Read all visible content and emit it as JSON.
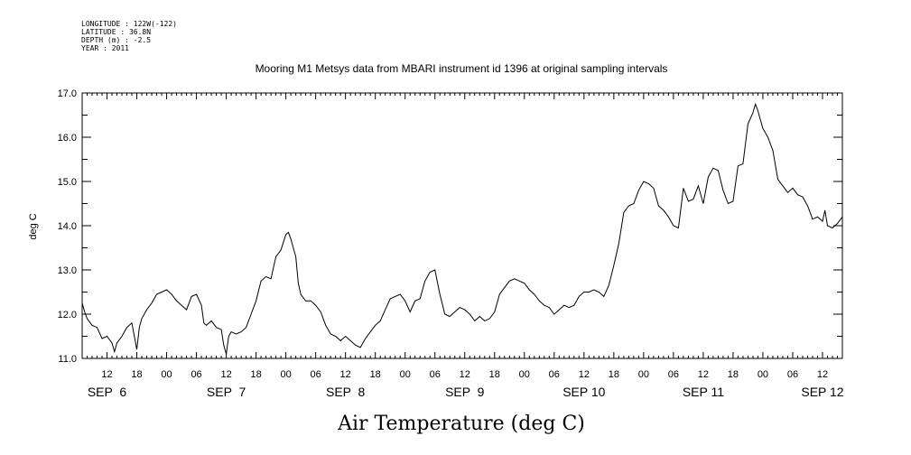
{
  "header": {
    "longitude": "LONGITUDE : 122W(-122)",
    "latitude": "LATITUDE : 36.8N",
    "depth": "DEPTH (m) : -2.5",
    "year": "YEAR : 2011"
  },
  "chart_data": {
    "type": "line",
    "title": "Mooring M1 Metsys data from MBARI instrument id 1396 at original sampling intervals",
    "xlabel": "Air Temperature (deg C)",
    "ylabel": "deg C",
    "ylim": [
      11.0,
      17.0
    ],
    "xlim": [
      "2011-09-06T07:00",
      "2011-09-12T16:00"
    ],
    "y_ticks": [
      "11.0",
      "12.0",
      "13.0",
      "14.0",
      "15.0",
      "16.0",
      "17.0"
    ],
    "x_hour_ticks": [
      {
        "t": "2011-09-06T12:00",
        "label": "12"
      },
      {
        "t": "2011-09-06T18:00",
        "label": "18"
      },
      {
        "t": "2011-09-07T00:00",
        "label": "00"
      },
      {
        "t": "2011-09-07T06:00",
        "label": "06"
      },
      {
        "t": "2011-09-07T12:00",
        "label": "12"
      },
      {
        "t": "2011-09-07T18:00",
        "label": "18"
      },
      {
        "t": "2011-09-08T00:00",
        "label": "00"
      },
      {
        "t": "2011-09-08T06:00",
        "label": "06"
      },
      {
        "t": "2011-09-08T12:00",
        "label": "12"
      },
      {
        "t": "2011-09-08T18:00",
        "label": "18"
      },
      {
        "t": "2011-09-09T00:00",
        "label": "00"
      },
      {
        "t": "2011-09-09T06:00",
        "label": "06"
      },
      {
        "t": "2011-09-09T12:00",
        "label": "12"
      },
      {
        "t": "2011-09-09T18:00",
        "label": "18"
      },
      {
        "t": "2011-09-10T00:00",
        "label": "00"
      },
      {
        "t": "2011-09-10T06:00",
        "label": "06"
      },
      {
        "t": "2011-09-10T12:00",
        "label": "12"
      },
      {
        "t": "2011-09-10T18:00",
        "label": "18"
      },
      {
        "t": "2011-09-11T00:00",
        "label": "00"
      },
      {
        "t": "2011-09-11T06:00",
        "label": "06"
      },
      {
        "t": "2011-09-11T12:00",
        "label": "12"
      },
      {
        "t": "2011-09-11T18:00",
        "label": "18"
      },
      {
        "t": "2011-09-12T00:00",
        "label": "00"
      },
      {
        "t": "2011-09-12T06:00",
        "label": "06"
      },
      {
        "t": "2011-09-12T12:00",
        "label": "12"
      }
    ],
    "day_labels": [
      {
        "t": "2011-09-06T12:00",
        "label": "SEP  6"
      },
      {
        "t": "2011-09-07T12:00",
        "label": "SEP  7"
      },
      {
        "t": "2011-09-08T12:00",
        "label": "SEP  8"
      },
      {
        "t": "2011-09-09T12:00",
        "label": "SEP  9"
      },
      {
        "t": "2011-09-10T12:00",
        "label": "SEP 10"
      },
      {
        "t": "2011-09-11T12:00",
        "label": "SEP 11"
      },
      {
        "t": "2011-09-12T12:00",
        "label": "SEP 12"
      }
    ],
    "series": [
      {
        "color": "#000000",
        "points": [
          [
            "2011-09-06T07:00",
            12.25
          ],
          [
            "2011-09-06T07:30",
            12.05
          ],
          [
            "2011-09-06T08:00",
            11.9
          ],
          [
            "2011-09-06T09:00",
            11.75
          ],
          [
            "2011-09-06T10:00",
            11.7
          ],
          [
            "2011-09-06T11:00",
            11.45
          ],
          [
            "2011-09-06T12:00",
            11.5
          ],
          [
            "2011-09-06T13:00",
            11.35
          ],
          [
            "2011-09-06T13:30",
            11.15
          ],
          [
            "2011-09-06T14:00",
            11.35
          ],
          [
            "2011-09-06T15:00",
            11.5
          ],
          [
            "2011-09-06T16:00",
            11.7
          ],
          [
            "2011-09-06T17:00",
            11.8
          ],
          [
            "2011-09-06T17:30",
            11.5
          ],
          [
            "2011-09-06T18:00",
            11.2
          ],
          [
            "2011-09-06T18:30",
            11.7
          ],
          [
            "2011-09-06T19:00",
            11.9
          ],
          [
            "2011-09-06T20:00",
            12.1
          ],
          [
            "2011-09-06T21:00",
            12.25
          ],
          [
            "2011-09-06T22:00",
            12.45
          ],
          [
            "2011-09-06T23:00",
            12.5
          ],
          [
            "2011-09-07T00:00",
            12.55
          ],
          [
            "2011-09-07T01:00",
            12.45
          ],
          [
            "2011-09-07T02:00",
            12.3
          ],
          [
            "2011-09-07T03:00",
            12.2
          ],
          [
            "2011-09-07T04:00",
            12.1
          ],
          [
            "2011-09-07T05:00",
            12.4
          ],
          [
            "2011-09-07T06:00",
            12.45
          ],
          [
            "2011-09-07T07:00",
            12.2
          ],
          [
            "2011-09-07T07:30",
            11.8
          ],
          [
            "2011-09-07T08:00",
            11.75
          ],
          [
            "2011-09-07T09:00",
            11.85
          ],
          [
            "2011-09-07T10:00",
            11.7
          ],
          [
            "2011-09-07T11:00",
            11.65
          ],
          [
            "2011-09-07T11:30",
            11.3
          ],
          [
            "2011-09-07T12:00",
            11.1
          ],
          [
            "2011-09-07T12:30",
            11.5
          ],
          [
            "2011-09-07T13:00",
            11.6
          ],
          [
            "2011-09-07T14:00",
            11.55
          ],
          [
            "2011-09-07T15:00",
            11.6
          ],
          [
            "2011-09-07T16:00",
            11.7
          ],
          [
            "2011-09-07T17:00",
            12.0
          ],
          [
            "2011-09-07T18:00",
            12.3
          ],
          [
            "2011-09-07T19:00",
            12.75
          ],
          [
            "2011-09-07T20:00",
            12.85
          ],
          [
            "2011-09-07T21:00",
            12.8
          ],
          [
            "2011-09-07T22:00",
            13.3
          ],
          [
            "2011-09-07T23:00",
            13.45
          ],
          [
            "2011-09-08T00:00",
            13.8
          ],
          [
            "2011-09-08T00:30",
            13.85
          ],
          [
            "2011-09-08T01:00",
            13.7
          ],
          [
            "2011-09-08T02:00",
            13.3
          ],
          [
            "2011-09-08T02:30",
            12.7
          ],
          [
            "2011-09-08T03:00",
            12.45
          ],
          [
            "2011-09-08T04:00",
            12.3
          ],
          [
            "2011-09-08T05:00",
            12.3
          ],
          [
            "2011-09-08T06:00",
            12.2
          ],
          [
            "2011-09-08T07:00",
            12.05
          ],
          [
            "2011-09-08T08:00",
            11.75
          ],
          [
            "2011-09-08T09:00",
            11.55
          ],
          [
            "2011-09-08T10:00",
            11.5
          ],
          [
            "2011-09-08T11:00",
            11.4
          ],
          [
            "2011-09-08T12:00",
            11.5
          ],
          [
            "2011-09-08T13:00",
            11.4
          ],
          [
            "2011-09-08T14:00",
            11.3
          ],
          [
            "2011-09-08T15:00",
            11.25
          ],
          [
            "2011-09-08T16:00",
            11.45
          ],
          [
            "2011-09-08T17:00",
            11.6
          ],
          [
            "2011-09-08T18:00",
            11.75
          ],
          [
            "2011-09-08T19:00",
            11.85
          ],
          [
            "2011-09-08T20:00",
            12.1
          ],
          [
            "2011-09-08T21:00",
            12.35
          ],
          [
            "2011-09-08T22:00",
            12.4
          ],
          [
            "2011-09-08T23:00",
            12.45
          ],
          [
            "2011-09-09T00:00",
            12.3
          ],
          [
            "2011-09-09T01:00",
            12.05
          ],
          [
            "2011-09-09T02:00",
            12.3
          ],
          [
            "2011-09-09T03:00",
            12.35
          ],
          [
            "2011-09-09T04:00",
            12.75
          ],
          [
            "2011-09-09T05:00",
            12.95
          ],
          [
            "2011-09-09T06:00",
            13.0
          ],
          [
            "2011-09-09T07:00",
            12.45
          ],
          [
            "2011-09-09T08:00",
            12.0
          ],
          [
            "2011-09-09T09:00",
            11.95
          ],
          [
            "2011-09-09T10:00",
            12.05
          ],
          [
            "2011-09-09T11:00",
            12.15
          ],
          [
            "2011-09-09T12:00",
            12.1
          ],
          [
            "2011-09-09T13:00",
            12.0
          ],
          [
            "2011-09-09T14:00",
            11.85
          ],
          [
            "2011-09-09T15:00",
            11.95
          ],
          [
            "2011-09-09T16:00",
            11.85
          ],
          [
            "2011-09-09T17:00",
            11.9
          ],
          [
            "2011-09-09T18:00",
            12.05
          ],
          [
            "2011-09-09T19:00",
            12.45
          ],
          [
            "2011-09-09T20:00",
            12.6
          ],
          [
            "2011-09-09T21:00",
            12.75
          ],
          [
            "2011-09-09T22:00",
            12.8
          ],
          [
            "2011-09-09T23:00",
            12.75
          ],
          [
            "2011-09-10T00:00",
            12.7
          ],
          [
            "2011-09-10T01:00",
            12.55
          ],
          [
            "2011-09-10T02:00",
            12.45
          ],
          [
            "2011-09-10T03:00",
            12.3
          ],
          [
            "2011-09-10T04:00",
            12.2
          ],
          [
            "2011-09-10T05:00",
            12.15
          ],
          [
            "2011-09-10T06:00",
            12.0
          ],
          [
            "2011-09-10T07:00",
            12.1
          ],
          [
            "2011-09-10T08:00",
            12.2
          ],
          [
            "2011-09-10T09:00",
            12.15
          ],
          [
            "2011-09-10T10:00",
            12.2
          ],
          [
            "2011-09-10T11:00",
            12.4
          ],
          [
            "2011-09-10T12:00",
            12.5
          ],
          [
            "2011-09-10T13:00",
            12.5
          ],
          [
            "2011-09-10T14:00",
            12.55
          ],
          [
            "2011-09-10T15:00",
            12.5
          ],
          [
            "2011-09-10T16:00",
            12.4
          ],
          [
            "2011-09-10T17:00",
            12.65
          ],
          [
            "2011-09-10T18:00",
            13.1
          ],
          [
            "2011-09-10T19:00",
            13.6
          ],
          [
            "2011-09-10T20:00",
            14.3
          ],
          [
            "2011-09-10T21:00",
            14.45
          ],
          [
            "2011-09-10T22:00",
            14.5
          ],
          [
            "2011-09-10T23:00",
            14.8
          ],
          [
            "2011-09-11T00:00",
            15.0
          ],
          [
            "2011-09-11T01:00",
            14.95
          ],
          [
            "2011-09-11T02:00",
            14.85
          ],
          [
            "2011-09-11T03:00",
            14.45
          ],
          [
            "2011-09-11T04:00",
            14.35
          ],
          [
            "2011-09-11T05:00",
            14.2
          ],
          [
            "2011-09-11T06:00",
            14.0
          ],
          [
            "2011-09-11T07:00",
            13.95
          ],
          [
            "2011-09-11T08:00",
            14.85
          ],
          [
            "2011-09-11T09:00",
            14.55
          ],
          [
            "2011-09-11T10:00",
            14.6
          ],
          [
            "2011-09-11T11:00",
            14.9
          ],
          [
            "2011-09-11T12:00",
            14.5
          ],
          [
            "2011-09-11T13:00",
            15.1
          ],
          [
            "2011-09-11T14:00",
            15.3
          ],
          [
            "2011-09-11T15:00",
            15.25
          ],
          [
            "2011-09-11T16:00",
            14.8
          ],
          [
            "2011-09-11T17:00",
            14.5
          ],
          [
            "2011-09-11T18:00",
            14.55
          ],
          [
            "2011-09-11T19:00",
            15.35
          ],
          [
            "2011-09-11T20:00",
            15.4
          ],
          [
            "2011-09-11T21:00",
            16.3
          ],
          [
            "2011-09-11T22:00",
            16.55
          ],
          [
            "2011-09-11T22:30",
            16.75
          ],
          [
            "2011-09-11T23:00",
            16.6
          ],
          [
            "2011-09-12T00:00",
            16.2
          ],
          [
            "2011-09-12T01:00",
            16.0
          ],
          [
            "2011-09-12T02:00",
            15.7
          ],
          [
            "2011-09-12T03:00",
            15.05
          ],
          [
            "2011-09-12T04:00",
            14.9
          ],
          [
            "2011-09-12T05:00",
            14.75
          ],
          [
            "2011-09-12T06:00",
            14.85
          ],
          [
            "2011-09-12T07:00",
            14.7
          ],
          [
            "2011-09-12T08:00",
            14.65
          ],
          [
            "2011-09-12T09:00",
            14.45
          ],
          [
            "2011-09-12T10:00",
            14.15
          ],
          [
            "2011-09-12T11:00",
            14.2
          ],
          [
            "2011-09-12T12:00",
            14.1
          ],
          [
            "2011-09-12T12:30",
            14.35
          ],
          [
            "2011-09-12T13:00",
            14.0
          ],
          [
            "2011-09-12T14:00",
            13.95
          ],
          [
            "2011-09-12T15:00",
            14.05
          ],
          [
            "2011-09-12T16:00",
            14.2
          ]
        ]
      }
    ]
  }
}
